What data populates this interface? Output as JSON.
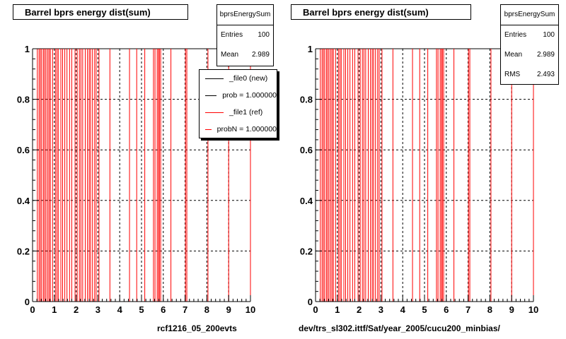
{
  "colors": {
    "ref": "#ff0000",
    "new": "#000000",
    "grid": "#000000"
  },
  "chart_data": [
    {
      "type": "bar",
      "title": "Barrel bprs energy dist(sum)",
      "xlim": [
        0,
        10
      ],
      "ylim": [
        0,
        1
      ],
      "xticks": [
        "0",
        "1",
        "2",
        "3",
        "4",
        "5",
        "6",
        "7",
        "8",
        "9",
        "10"
      ],
      "yticks": [
        "0",
        "0.2",
        "0.4",
        "0.6",
        "0.8",
        "1"
      ],
      "grid": true,
      "stats": {
        "name": "bprsEnergySum",
        "entries_label": "Entries",
        "entries": "100",
        "mean_label": "Mean",
        "mean": "2.989"
      },
      "legend": {
        "placement": "top-right",
        "entries": [
          {
            "label": "_file0 (new)",
            "color": "#000000"
          },
          {
            "label": "prob = 1.000000",
            "color": "#000000"
          },
          {
            "label": "_file1 (ref)",
            "color": "#ff0000"
          },
          {
            "label": "probN = 1.000000",
            "color": "#ff0000"
          }
        ]
      },
      "footer": "rcf1216_05_200evts",
      "series": [
        {
          "color": "#ff0000",
          "x": [
            0.22,
            0.3,
            0.36,
            0.42,
            0.5,
            0.56,
            0.62,
            0.7,
            0.76,
            0.82,
            0.92,
            1.05,
            1.12,
            1.18,
            1.3,
            1.38,
            1.48,
            1.58,
            1.7,
            1.8,
            1.95,
            2.05,
            2.15,
            2.22,
            2.3,
            2.42,
            2.52,
            2.6,
            2.66,
            2.75,
            2.85,
            2.92,
            3.05,
            3.55,
            4.45,
            4.78,
            5.15,
            5.55,
            5.62,
            5.72,
            5.78,
            5.82,
            5.88,
            6.35,
            7.02,
            7.08,
            8.05,
            9.0,
            10.0
          ],
          "y": [
            1,
            1,
            1,
            1,
            1,
            1,
            1,
            1,
            1,
            1,
            1,
            1,
            1,
            1,
            1,
            1,
            1,
            1,
            1,
            1,
            1,
            1,
            1,
            1,
            1,
            1,
            1,
            1,
            1,
            1,
            1,
            1,
            1,
            1,
            1,
            1,
            1,
            1,
            1,
            1,
            1,
            1,
            1,
            1,
            1,
            1,
            1,
            1,
            1
          ]
        }
      ]
    },
    {
      "type": "bar",
      "title": "Barrel bprs energy dist(sum)",
      "xlim": [
        0,
        10
      ],
      "ylim": [
        0,
        1
      ],
      "xticks": [
        "0",
        "1",
        "2",
        "3",
        "4",
        "5",
        "6",
        "7",
        "8",
        "9",
        "10"
      ],
      "yticks": [
        "0",
        "0.2",
        "0.4",
        "0.6",
        "0.8",
        "1"
      ],
      "grid": true,
      "stats": {
        "name": "bprsEnergySum",
        "entries_label": "Entries",
        "entries": "100",
        "mean_label": "Mean",
        "mean": "2.989",
        "rms_label": "RMS",
        "rms": "2.493"
      },
      "footer": "dev/trs_sl302.ittf/Sat/year_2005/cucu200_minbias/",
      "series": [
        {
          "color": "#ff0000",
          "x": [
            0.22,
            0.3,
            0.36,
            0.42,
            0.5,
            0.56,
            0.62,
            0.7,
            0.76,
            0.82,
            0.92,
            1.05,
            1.12,
            1.18,
            1.3,
            1.38,
            1.48,
            1.58,
            1.7,
            1.8,
            1.95,
            2.05,
            2.15,
            2.22,
            2.3,
            2.42,
            2.52,
            2.6,
            2.66,
            2.75,
            2.85,
            2.92,
            3.05,
            3.55,
            4.45,
            4.78,
            5.15,
            5.55,
            5.62,
            5.72,
            5.78,
            5.82,
            5.88,
            6.35,
            7.02,
            7.08,
            8.05,
            9.0,
            10.0
          ],
          "y": [
            1,
            1,
            1,
            1,
            1,
            1,
            1,
            1,
            1,
            1,
            1,
            1,
            1,
            1,
            1,
            1,
            1,
            1,
            1,
            1,
            1,
            1,
            1,
            1,
            1,
            1,
            1,
            1,
            1,
            1,
            1,
            1,
            1,
            1,
            1,
            1,
            1,
            1,
            1,
            1,
            1,
            1,
            1,
            1,
            1,
            1,
            1,
            1,
            1
          ]
        }
      ]
    }
  ]
}
